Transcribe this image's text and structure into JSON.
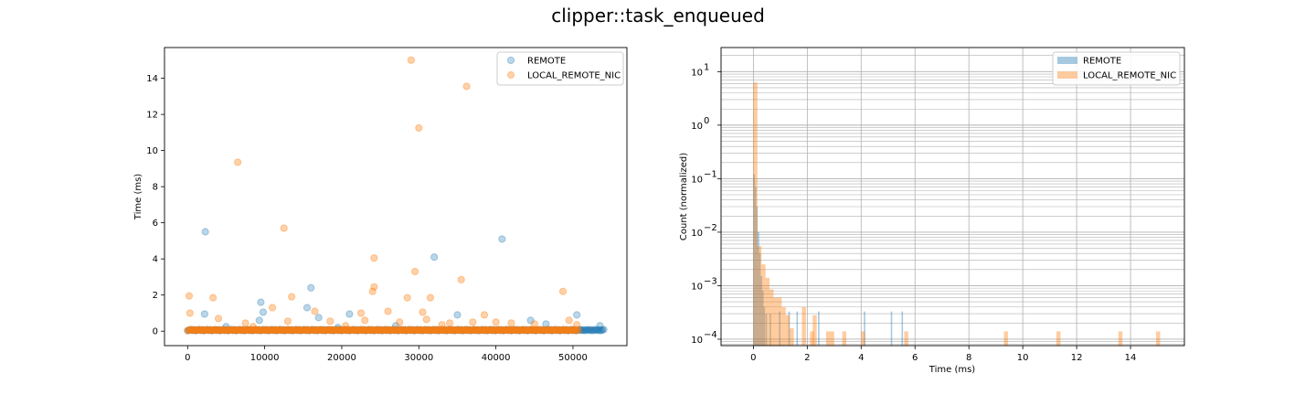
{
  "title": "clipper::task_enqueued",
  "colors": {
    "remote": "#1f77b4",
    "local_remote_nic": "#ff7f0e"
  },
  "chart_data": [
    {
      "type": "scatter",
      "title": "",
      "xlabel": "",
      "ylabel": "Time (ms)",
      "xlim": [
        -3000,
        57000
      ],
      "ylim": [
        -0.8,
        15.7
      ],
      "xticks": [
        0,
        10000,
        20000,
        30000,
        40000,
        50000
      ],
      "xtick_labels": [
        "0",
        "10000",
        "20000",
        "30000",
        "40000",
        "50000"
      ],
      "yticks": [
        0,
        2,
        4,
        6,
        8,
        10,
        12,
        14
      ],
      "ytick_labels": [
        "0",
        "2",
        "4",
        "6",
        "8",
        "10",
        "12",
        "14"
      ],
      "grid": false,
      "legend_position": "top-right",
      "series": [
        {
          "name": "REMOTE",
          "color": "#1f77b4",
          "alpha": 0.3,
          "baseline": {
            "x_range": [
              0,
              54000
            ],
            "y": 0.03
          },
          "points": [
            {
              "x": 2300,
              "y": 5.5
            },
            {
              "x": 2200,
              "y": 0.95
            },
            {
              "x": 9500,
              "y": 1.6
            },
            {
              "x": 9300,
              "y": 0.6
            },
            {
              "x": 9800,
              "y": 1.05
            },
            {
              "x": 15500,
              "y": 1.3
            },
            {
              "x": 16000,
              "y": 2.4
            },
            {
              "x": 17000,
              "y": 0.75
            },
            {
              "x": 21000,
              "y": 0.95
            },
            {
              "x": 32000,
              "y": 4.1
            },
            {
              "x": 35000,
              "y": 0.9
            },
            {
              "x": 40800,
              "y": 5.1
            },
            {
              "x": 44500,
              "y": 0.6
            },
            {
              "x": 50500,
              "y": 0.9
            },
            {
              "x": 53500,
              "y": 0.3
            },
            {
              "x": 19500,
              "y": 0.2
            },
            {
              "x": 5000,
              "y": 0.25
            },
            {
              "x": 27000,
              "y": 0.3
            },
            {
              "x": 46500,
              "y": 0.4
            }
          ]
        },
        {
          "name": "LOCAL_REMOTE_NIC",
          "color": "#ff7f0e",
          "alpha": 0.35,
          "baseline": {
            "x_range": [
              0,
              50800
            ],
            "y": 0.03
          },
          "points": [
            {
              "x": 6500,
              "y": 9.35
            },
            {
              "x": 12500,
              "y": 5.7
            },
            {
              "x": 29000,
              "y": 15.0
            },
            {
              "x": 30000,
              "y": 11.25
            },
            {
              "x": 36200,
              "y": 13.55
            },
            {
              "x": 24200,
              "y": 4.05
            },
            {
              "x": 24200,
              "y": 2.45
            },
            {
              "x": 24000,
              "y": 2.2
            },
            {
              "x": 29500,
              "y": 3.3
            },
            {
              "x": 35500,
              "y": 2.85
            },
            {
              "x": 48700,
              "y": 2.2
            },
            {
              "x": 200,
              "y": 1.95
            },
            {
              "x": 3300,
              "y": 1.85
            },
            {
              "x": 13500,
              "y": 1.9
            },
            {
              "x": 28500,
              "y": 1.85
            },
            {
              "x": 31500,
              "y": 1.85
            },
            {
              "x": 11000,
              "y": 1.3
            },
            {
              "x": 16500,
              "y": 1.1
            },
            {
              "x": 22500,
              "y": 1.0
            },
            {
              "x": 26000,
              "y": 1.1
            },
            {
              "x": 30500,
              "y": 1.05
            },
            {
              "x": 38500,
              "y": 0.9
            },
            {
              "x": 300,
              "y": 1.0
            },
            {
              "x": 4000,
              "y": 0.7
            },
            {
              "x": 7500,
              "y": 0.45
            },
            {
              "x": 13000,
              "y": 0.55
            },
            {
              "x": 18500,
              "y": 0.55
            },
            {
              "x": 23000,
              "y": 0.6
            },
            {
              "x": 27500,
              "y": 0.5
            },
            {
              "x": 31000,
              "y": 0.65
            },
            {
              "x": 34000,
              "y": 0.45
            },
            {
              "x": 37000,
              "y": 0.5
            },
            {
              "x": 40000,
              "y": 0.5
            },
            {
              "x": 42000,
              "y": 0.45
            },
            {
              "x": 45000,
              "y": 0.4
            },
            {
              "x": 49500,
              "y": 0.6
            },
            {
              "x": 50500,
              "y": 0.35
            },
            {
              "x": 8500,
              "y": 0.25
            },
            {
              "x": 20500,
              "y": 0.3
            },
            {
              "x": 33000,
              "y": 0.35
            }
          ]
        }
      ]
    },
    {
      "type": "histogram",
      "title": "",
      "xlabel": "Time (ms)",
      "ylabel": "Count (normalized)",
      "xlim": [
        -1.2,
        16.0
      ],
      "ylim_log10": [
        -4.12,
        1.45
      ],
      "yscale": "log",
      "xticks": [
        0,
        2,
        4,
        6,
        8,
        10,
        12,
        14
      ],
      "xtick_labels": [
        "0",
        "2",
        "4",
        "6",
        "8",
        "10",
        "12",
        "14"
      ],
      "ytick_exponents": [
        -4,
        -3,
        -2,
        -1,
        0,
        1
      ],
      "ytick_labels": [
        "10",
        "10",
        "10",
        "10",
        "10",
        "10"
      ],
      "grid": true,
      "legend_position": "top-right",
      "series": [
        {
          "name": "REMOTE",
          "color": "#1f77b4",
          "alpha": 0.4,
          "bin_width": 0.054,
          "bins": [
            {
              "x": 0.0,
              "y": 0.12
            },
            {
              "x": 0.054,
              "y": 0.07
            },
            {
              "x": 0.108,
              "y": 0.03
            },
            {
              "x": 0.162,
              "y": 0.01
            },
            {
              "x": 0.216,
              "y": 0.004
            },
            {
              "x": 0.27,
              "y": 0.0015
            },
            {
              "x": 0.324,
              "y": 0.0008
            },
            {
              "x": 0.378,
              "y": 0.0004
            },
            {
              "x": 0.45,
              "y": 0.0003
            },
            {
              "x": 0.6,
              "y": 0.0003
            },
            {
              "x": 0.95,
              "y": 0.00033
            },
            {
              "x": 1.3,
              "y": 0.00033
            },
            {
              "x": 1.6,
              "y": 0.00033
            },
            {
              "x": 2.4,
              "y": 0.00033
            },
            {
              "x": 4.1,
              "y": 0.00033
            },
            {
              "x": 5.1,
              "y": 0.00033
            },
            {
              "x": 5.5,
              "y": 0.00033
            }
          ]
        },
        {
          "name": "LOCAL_REMOTE_NIC",
          "color": "#ff7f0e",
          "alpha": 0.4,
          "bin_width": 0.15,
          "bins": [
            {
              "x": 0.0,
              "y": 6.3
            },
            {
              "x": 0.15,
              "y": 0.0055
            },
            {
              "x": 0.3,
              "y": 0.0025
            },
            {
              "x": 0.45,
              "y": 0.0014
            },
            {
              "x": 0.6,
              "y": 0.00085
            },
            {
              "x": 0.75,
              "y": 0.0006
            },
            {
              "x": 0.9,
              "y": 0.0006
            },
            {
              "x": 1.05,
              "y": 0.0004
            },
            {
              "x": 1.2,
              "y": 0.00028
            },
            {
              "x": 1.35,
              "y": 0.00016
            },
            {
              "x": 1.8,
              "y": 0.0004
            },
            {
              "x": 2.1,
              "y": 0.00014
            },
            {
              "x": 2.2,
              "y": 0.00028
            },
            {
              "x": 2.7,
              "y": 0.00014
            },
            {
              "x": 2.85,
              "y": 0.00014
            },
            {
              "x": 3.3,
              "y": 0.00014
            },
            {
              "x": 4.0,
              "y": 0.00014
            },
            {
              "x": 5.6,
              "y": 0.00014
            },
            {
              "x": 9.3,
              "y": 0.00014
            },
            {
              "x": 11.25,
              "y": 0.00014
            },
            {
              "x": 13.55,
              "y": 0.00014
            },
            {
              "x": 14.95,
              "y": 0.00014
            }
          ]
        }
      ]
    }
  ]
}
